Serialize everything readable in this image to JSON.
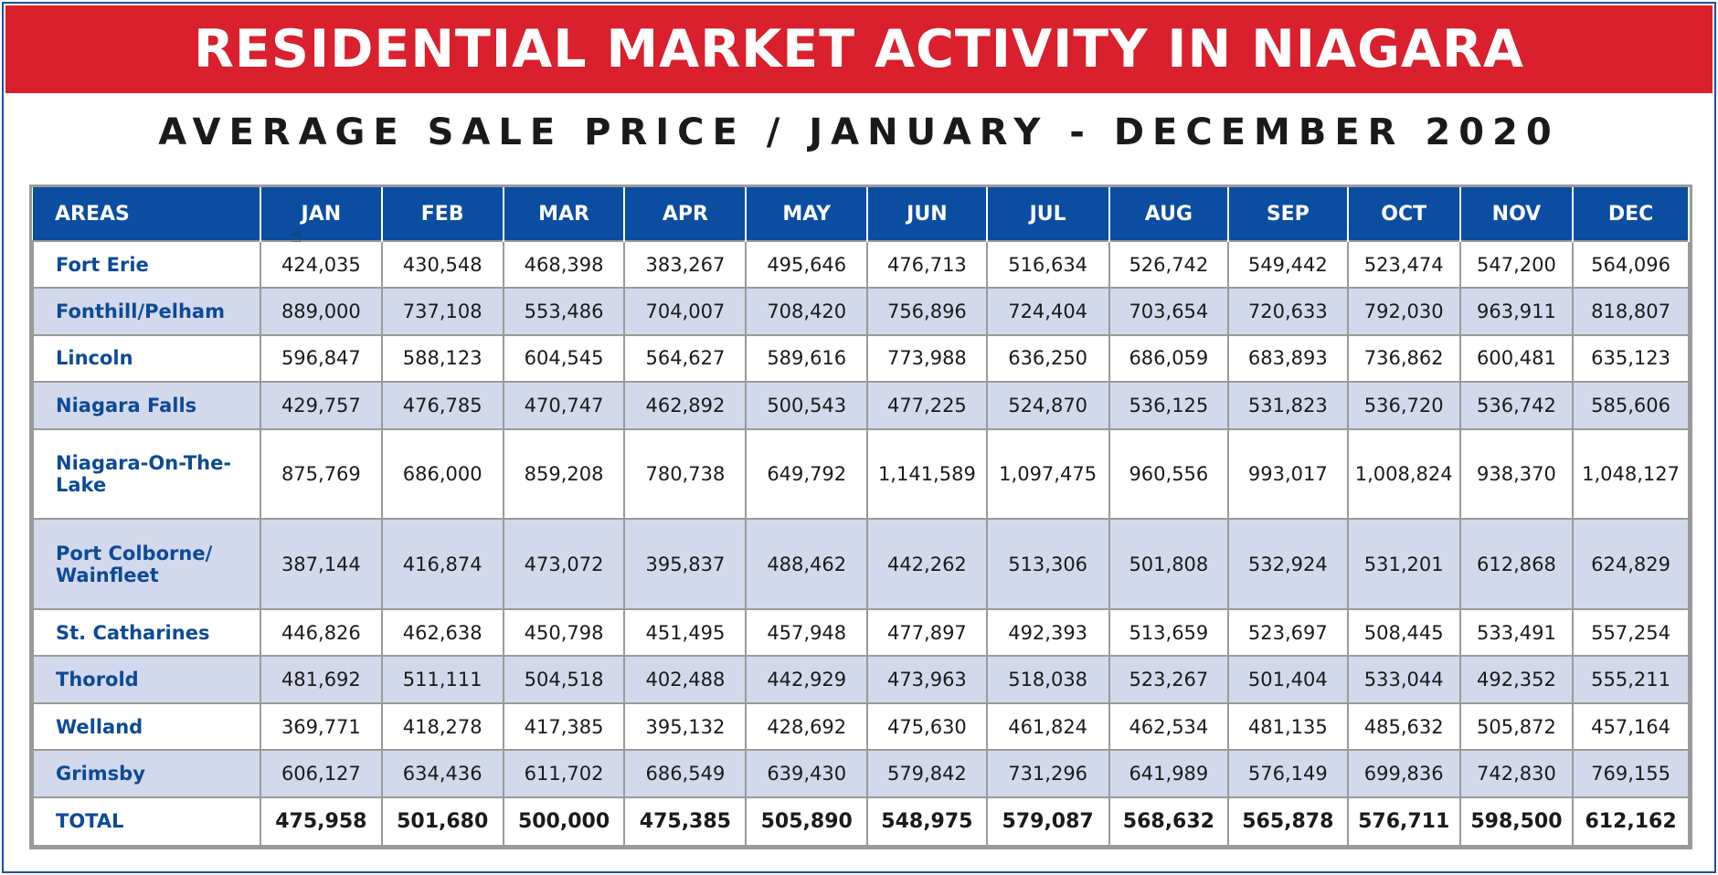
{
  "title": "RESIDENTIAL MARKET ACTIVITY IN NIAGARA",
  "subtitle": "AVERAGE SALE PRICE / JANUARY - DECEMBER 2020",
  "colors": {
    "banner": "#d9202c",
    "header": "#0b4da1",
    "alt_row": "#d3d9ec",
    "area_text": "#0d4a97"
  },
  "chart_data": {
    "type": "table",
    "title": "AVERAGE SALE PRICE / JANUARY - DECEMBER 2020",
    "columns": [
      "AREAS",
      "JAN",
      "FEB",
      "MAR",
      "APR",
      "MAY",
      "JUN",
      "JUL",
      "AUG",
      "SEP",
      "OCT",
      "NOV",
      "DEC"
    ],
    "rows": [
      {
        "area": "Fort Erie",
        "values": [
          "424,035",
          "430,548",
          "468,398",
          "383,267",
          "495,646",
          "476,713",
          "516,634",
          "526,742",
          "549,442",
          "523,474",
          "547,200",
          "564,096"
        ]
      },
      {
        "area": "Fonthill/Pelham",
        "values": [
          "889,000",
          "737,108",
          "553,486",
          "704,007",
          "708,420",
          "756,896",
          "724,404",
          "703,654",
          "720,633",
          "792,030",
          "963,911",
          "818,807"
        ]
      },
      {
        "area": "Lincoln",
        "values": [
          "596,847",
          "588,123",
          "604,545",
          "564,627",
          "589,616",
          "773,988",
          "636,250",
          "686,059",
          "683,893",
          "736,862",
          "600,481",
          "635,123"
        ]
      },
      {
        "area": "Niagara Falls",
        "values": [
          "429,757",
          "476,785",
          "470,747",
          "462,892",
          "500,543",
          "477,225",
          "524,870",
          "536,125",
          "531,823",
          "536,720",
          "536,742",
          "585,606"
        ]
      },
      {
        "area": "Niagara-On-The-Lake",
        "values": [
          "875,769",
          "686,000",
          "859,208",
          "780,738",
          "649,792",
          "1,141,589",
          "1,097,475",
          "960,556",
          "993,017",
          "1,008,824",
          "938,370",
          "1,048,127"
        ]
      },
      {
        "area": "Port Colborne/ Wainfleet",
        "values": [
          "387,144",
          "416,874",
          "473,072",
          "395,837",
          "488,462",
          "442,262",
          "513,306",
          "501,808",
          "532,924",
          "531,201",
          "612,868",
          "624,829"
        ]
      },
      {
        "area": "St. Catharines",
        "values": [
          "446,826",
          "462,638",
          "450,798",
          "451,495",
          "457,948",
          "477,897",
          "492,393",
          "513,659",
          "523,697",
          "508,445",
          "533,491",
          "557,254"
        ]
      },
      {
        "area": "Thorold",
        "values": [
          "481,692",
          "511,111",
          "504,518",
          "402,488",
          "442,929",
          "473,963",
          "518,038",
          "523,267",
          "501,404",
          "533,044",
          "492,352",
          "555,211"
        ]
      },
      {
        "area": "Welland",
        "values": [
          "369,771",
          "418,278",
          "417,385",
          "395,132",
          "428,692",
          "475,630",
          "461,824",
          "462,534",
          "481,135",
          "485,632",
          "505,872",
          "457,164"
        ]
      },
      {
        "area": "Grimsby",
        "values": [
          "606,127",
          "634,436",
          "611,702",
          "686,549",
          "639,430",
          "579,842",
          "731,296",
          "641,989",
          "576,149",
          "699,836",
          "742,830",
          "769,155"
        ]
      }
    ],
    "total": {
      "area": "TOTAL",
      "values": [
        "475,958",
        "501,680",
        "500,000",
        "475,385",
        "505,890",
        "548,975",
        "579,087",
        "568,632",
        "565,878",
        "576,711",
        "598,500",
        "612,162"
      ]
    }
  }
}
